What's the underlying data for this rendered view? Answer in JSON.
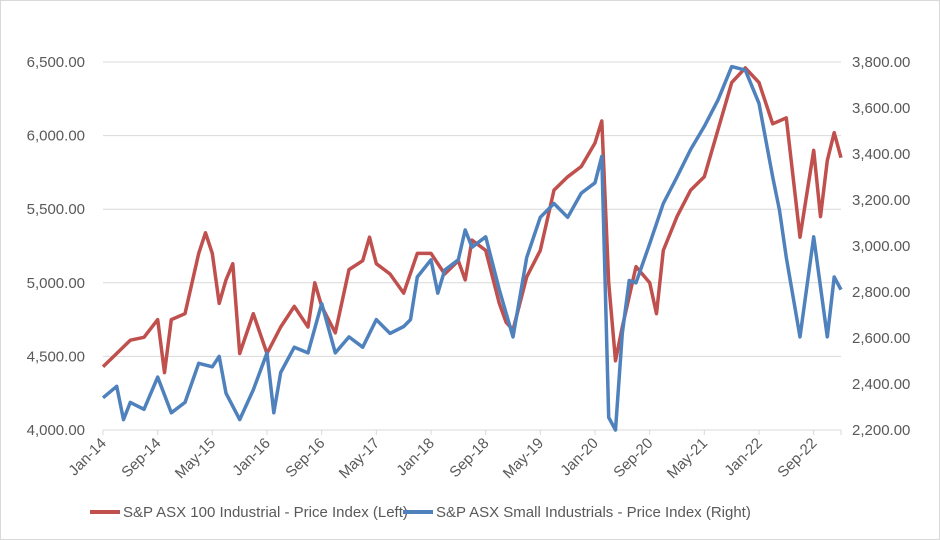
{
  "chart_data": {
    "type": "line",
    "title": "",
    "xlabel": "",
    "ylabel_left": "",
    "ylabel_right": "",
    "x_tick_labels": [
      "Jan-14",
      "Sep-14",
      "May-15",
      "Jan-16",
      "Sep-16",
      "May-17",
      "Jan-18",
      "Sep-18",
      "May-19",
      "Jan-20",
      "Sep-20",
      "May-21",
      "Jan-22",
      "Sep-22"
    ],
    "x_range": [
      "2014-01",
      "2023-01"
    ],
    "y_left": {
      "range": [
        4000,
        6500
      ],
      "ticks": [
        "4,000.00",
        "4,500.00",
        "5,000.00",
        "5,500.00",
        "6,000.00",
        "6,500.00"
      ]
    },
    "y_right": {
      "range": [
        2200,
        3800
      ],
      "ticks": [
        "2,200.00",
        "2,400.00",
        "2,600.00",
        "2,800.00",
        "3,000.00",
        "3,200.00",
        "3,400.00",
        "3,600.00",
        "3,800.00"
      ]
    },
    "grid": true,
    "legend_position": "bottom",
    "series": [
      {
        "name": "S&P ASX 100 Industrial - Price Index (Left)",
        "axis": "left",
        "color": "#C0504D",
        "points": [
          [
            "2014-01",
            4430
          ],
          [
            "2014-03",
            4520
          ],
          [
            "2014-05",
            4610
          ],
          [
            "2014-07",
            4630
          ],
          [
            "2014-09",
            4750
          ],
          [
            "2014-10",
            4390
          ],
          [
            "2014-11",
            4750
          ],
          [
            "2015-01",
            4790
          ],
          [
            "2015-03",
            5200
          ],
          [
            "2015-04",
            5340
          ],
          [
            "2015-05",
            5200
          ],
          [
            "2015-06",
            4860
          ],
          [
            "2015-07",
            5020
          ],
          [
            "2015-08",
            5130
          ],
          [
            "2015-09",
            4520
          ],
          [
            "2015-11",
            4790
          ],
          [
            "2016-01",
            4520
          ],
          [
            "2016-03",
            4700
          ],
          [
            "2016-05",
            4840
          ],
          [
            "2016-07",
            4700
          ],
          [
            "2016-08",
            5000
          ],
          [
            "2016-09",
            4840
          ],
          [
            "2016-11",
            4660
          ],
          [
            "2017-01",
            5090
          ],
          [
            "2017-03",
            5150
          ],
          [
            "2017-04",
            5310
          ],
          [
            "2017-05",
            5130
          ],
          [
            "2017-07",
            5060
          ],
          [
            "2017-09",
            4930
          ],
          [
            "2017-11",
            5200
          ],
          [
            "2018-01",
            5200
          ],
          [
            "2018-03",
            5060
          ],
          [
            "2018-05",
            5150
          ],
          [
            "2018-06",
            5020
          ],
          [
            "2018-07",
            5290
          ],
          [
            "2018-09",
            5220
          ],
          [
            "2018-11",
            4860
          ],
          [
            "2018-12",
            4730
          ],
          [
            "2019-01",
            4680
          ],
          [
            "2019-03",
            5040
          ],
          [
            "2019-05",
            5220
          ],
          [
            "2019-07",
            5630
          ],
          [
            "2019-09",
            5720
          ],
          [
            "2019-11",
            5790
          ],
          [
            "2020-01",
            5950
          ],
          [
            "2020-02",
            6100
          ],
          [
            "2020-03",
            5000
          ],
          [
            "2020-04",
            4470
          ],
          [
            "2020-05",
            4700
          ],
          [
            "2020-07",
            5110
          ],
          [
            "2020-09",
            5000
          ],
          [
            "2020-10",
            4790
          ],
          [
            "2020-11",
            5220
          ],
          [
            "2021-01",
            5450
          ],
          [
            "2021-03",
            5630
          ],
          [
            "2021-05",
            5720
          ],
          [
            "2021-07",
            6040
          ],
          [
            "2021-09",
            6360
          ],
          [
            "2021-11",
            6460
          ],
          [
            "2022-01",
            6360
          ],
          [
            "2022-03",
            6080
          ],
          [
            "2022-05",
            6120
          ],
          [
            "2022-07",
            5310
          ],
          [
            "2022-09",
            5900
          ],
          [
            "2022-10",
            5450
          ],
          [
            "2022-11",
            5830
          ],
          [
            "2022-12",
            6020
          ],
          [
            "2023-01",
            5850
          ]
        ]
      },
      {
        "name": "S&P ASX Small Industrials - Price Index (Right)",
        "axis": "right",
        "color": "#4F81BD",
        "points": [
          [
            "2014-01",
            2340
          ],
          [
            "2014-03",
            2390
          ],
          [
            "2014-04",
            2245
          ],
          [
            "2014-05",
            2320
          ],
          [
            "2014-07",
            2290
          ],
          [
            "2014-09",
            2430
          ],
          [
            "2014-11",
            2275
          ],
          [
            "2015-01",
            2320
          ],
          [
            "2015-03",
            2490
          ],
          [
            "2015-05",
            2475
          ],
          [
            "2015-06",
            2520
          ],
          [
            "2015-07",
            2360
          ],
          [
            "2015-09",
            2245
          ],
          [
            "2015-11",
            2375
          ],
          [
            "2016-01",
            2535
          ],
          [
            "2016-02",
            2275
          ],
          [
            "2016-03",
            2450
          ],
          [
            "2016-05",
            2560
          ],
          [
            "2016-07",
            2535
          ],
          [
            "2016-09",
            2750
          ],
          [
            "2016-11",
            2535
          ],
          [
            "2017-01",
            2605
          ],
          [
            "2017-03",
            2560
          ],
          [
            "2017-05",
            2680
          ],
          [
            "2017-07",
            2620
          ],
          [
            "2017-09",
            2650
          ],
          [
            "2017-10",
            2680
          ],
          [
            "2017-11",
            2865
          ],
          [
            "2018-01",
            2940
          ],
          [
            "2018-02",
            2795
          ],
          [
            "2018-03",
            2895
          ],
          [
            "2018-05",
            2940
          ],
          [
            "2018-06",
            3070
          ],
          [
            "2018-07",
            2995
          ],
          [
            "2018-09",
            3040
          ],
          [
            "2018-11",
            2810
          ],
          [
            "2019-01",
            2605
          ],
          [
            "2019-03",
            2950
          ],
          [
            "2019-05",
            3125
          ],
          [
            "2019-07",
            3185
          ],
          [
            "2019-09",
            3125
          ],
          [
            "2019-11",
            3230
          ],
          [
            "2020-01",
            3275
          ],
          [
            "2020-02",
            3390
          ],
          [
            "2020-03",
            2255
          ],
          [
            "2020-04",
            2200
          ],
          [
            "2020-05",
            2620
          ],
          [
            "2020-06",
            2850
          ],
          [
            "2020-07",
            2840
          ],
          [
            "2020-09",
            3010
          ],
          [
            "2020-11",
            3185
          ],
          [
            "2021-01",
            3300
          ],
          [
            "2021-03",
            3420
          ],
          [
            "2021-05",
            3520
          ],
          [
            "2021-07",
            3635
          ],
          [
            "2021-09",
            3780
          ],
          [
            "2021-11",
            3765
          ],
          [
            "2022-01",
            3620
          ],
          [
            "2022-03",
            3300
          ],
          [
            "2022-04",
            3155
          ],
          [
            "2022-05",
            2950
          ],
          [
            "2022-07",
            2605
          ],
          [
            "2022-09",
            3040
          ],
          [
            "2022-11",
            2605
          ],
          [
            "2022-12",
            2865
          ],
          [
            "2023-01",
            2810
          ]
        ]
      }
    ]
  }
}
